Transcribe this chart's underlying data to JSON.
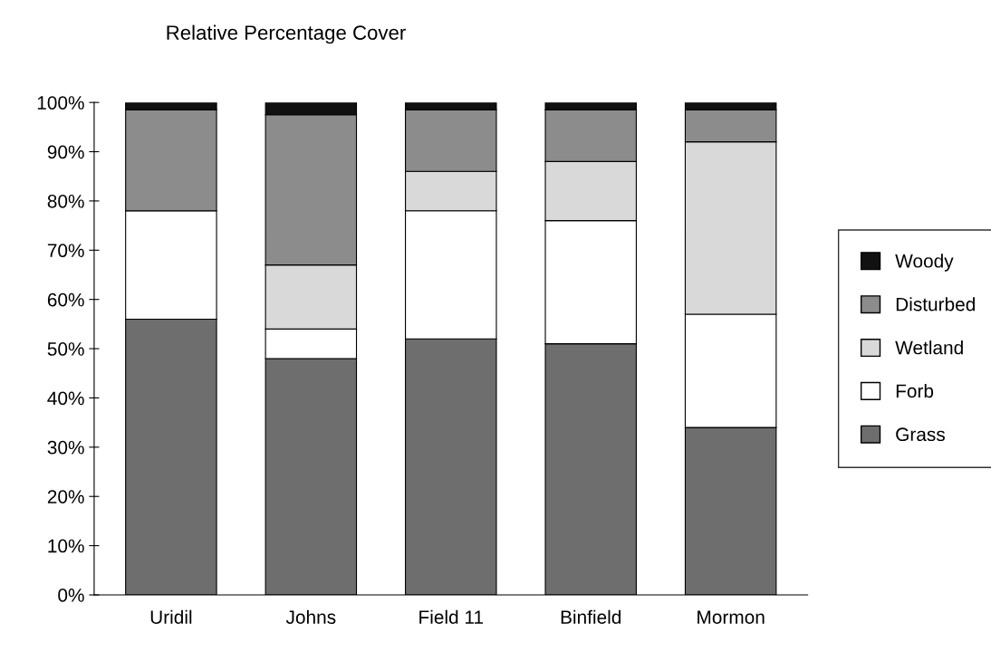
{
  "chart_data": {
    "type": "bar",
    "title": "Relative Percentage Cover",
    "stacked": true,
    "categories": [
      "Uridil",
      "Johns",
      "Field 11",
      "Binfield",
      "Mormon"
    ],
    "series": [
      {
        "name": "Grass",
        "color": "#6e6e6e",
        "values": [
          56,
          48,
          52,
          51,
          34
        ]
      },
      {
        "name": "Forb",
        "color": "#ffffff",
        "values": [
          22,
          6,
          26,
          25,
          23
        ]
      },
      {
        "name": "Wetland",
        "color": "#d9d9d9",
        "values": [
          0,
          13,
          8,
          12,
          35
        ]
      },
      {
        "name": "Disturbed",
        "color": "#8c8c8c",
        "values": [
          20.5,
          30.5,
          12.5,
          10.5,
          6.5
        ]
      },
      {
        "name": "Woody",
        "color": "#111111",
        "values": [
          1.5,
          2.5,
          1.5,
          1.5,
          1.5
        ]
      }
    ],
    "ylim": [
      0,
      100
    ],
    "yticks": [
      {
        "value": 0,
        "label": "0%"
      },
      {
        "value": 10,
        "label": "10%"
      },
      {
        "value": 20,
        "label": "20%"
      },
      {
        "value": 30,
        "label": "30%"
      },
      {
        "value": 40,
        "label": "40%"
      },
      {
        "value": 50,
        "label": "50%"
      },
      {
        "value": 60,
        "label": "60%"
      },
      {
        "value": 70,
        "label": "70%"
      },
      {
        "value": 80,
        "label": "80%"
      },
      {
        "value": 90,
        "label": "90%"
      },
      {
        "value": 100,
        "label": "100%"
      }
    ],
    "grid": false,
    "legend": "right"
  }
}
